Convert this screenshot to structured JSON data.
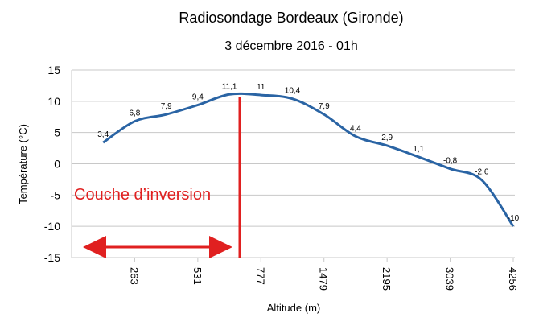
{
  "chart_data": {
    "type": "line",
    "title": "Radiosondage Bordeaux (Gironde)",
    "subtitle": "3 décembre 2016 - 01h",
    "x_label": "Altitude (m)",
    "y_label": "Température (°C)",
    "annotation": "Couche d’inversion",
    "categories": [
      null,
      "263",
      null,
      "531",
      null,
      "777",
      null,
      "1479",
      null,
      "2195",
      null,
      "3039",
      null,
      "4256"
    ],
    "series": [
      {
        "name": "Température",
        "color": "#2a64a4",
        "values": [
          3.4,
          6.8,
          7.9,
          9.4,
          11.1,
          11,
          10.4,
          7.9,
          4.4,
          2.9,
          1.1,
          -0.8,
          -2.6,
          -10
        ],
        "value_labels": [
          "3,4",
          "6,8",
          "7,9",
          "9,4",
          "11,1",
          "11",
          "10,4",
          "7,9",
          "4,4",
          "2,9",
          "1,1",
          "-0,8",
          "-2,6",
          "-10"
        ]
      }
    ],
    "ylim": [
      -15,
      15
    ],
    "yticks": [
      -15,
      -10,
      -5,
      0,
      5,
      10,
      15
    ],
    "grid": true
  }
}
